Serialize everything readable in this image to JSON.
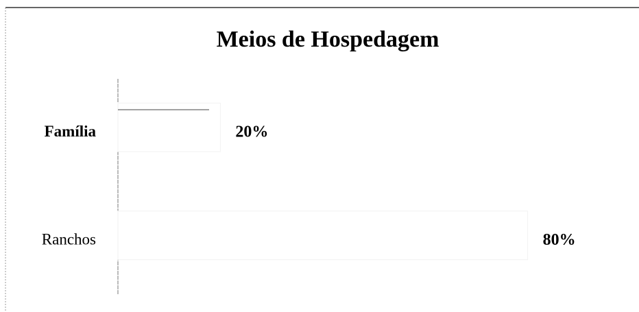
{
  "chart_data": {
    "type": "bar",
    "orientation": "horizontal",
    "title": "Meios de Hospedagem",
    "categories": [
      "Família",
      "Ranchos"
    ],
    "values": [
      20,
      80
    ],
    "value_labels": [
      "20%",
      "80%"
    ],
    "color": "#ffffff"
  }
}
